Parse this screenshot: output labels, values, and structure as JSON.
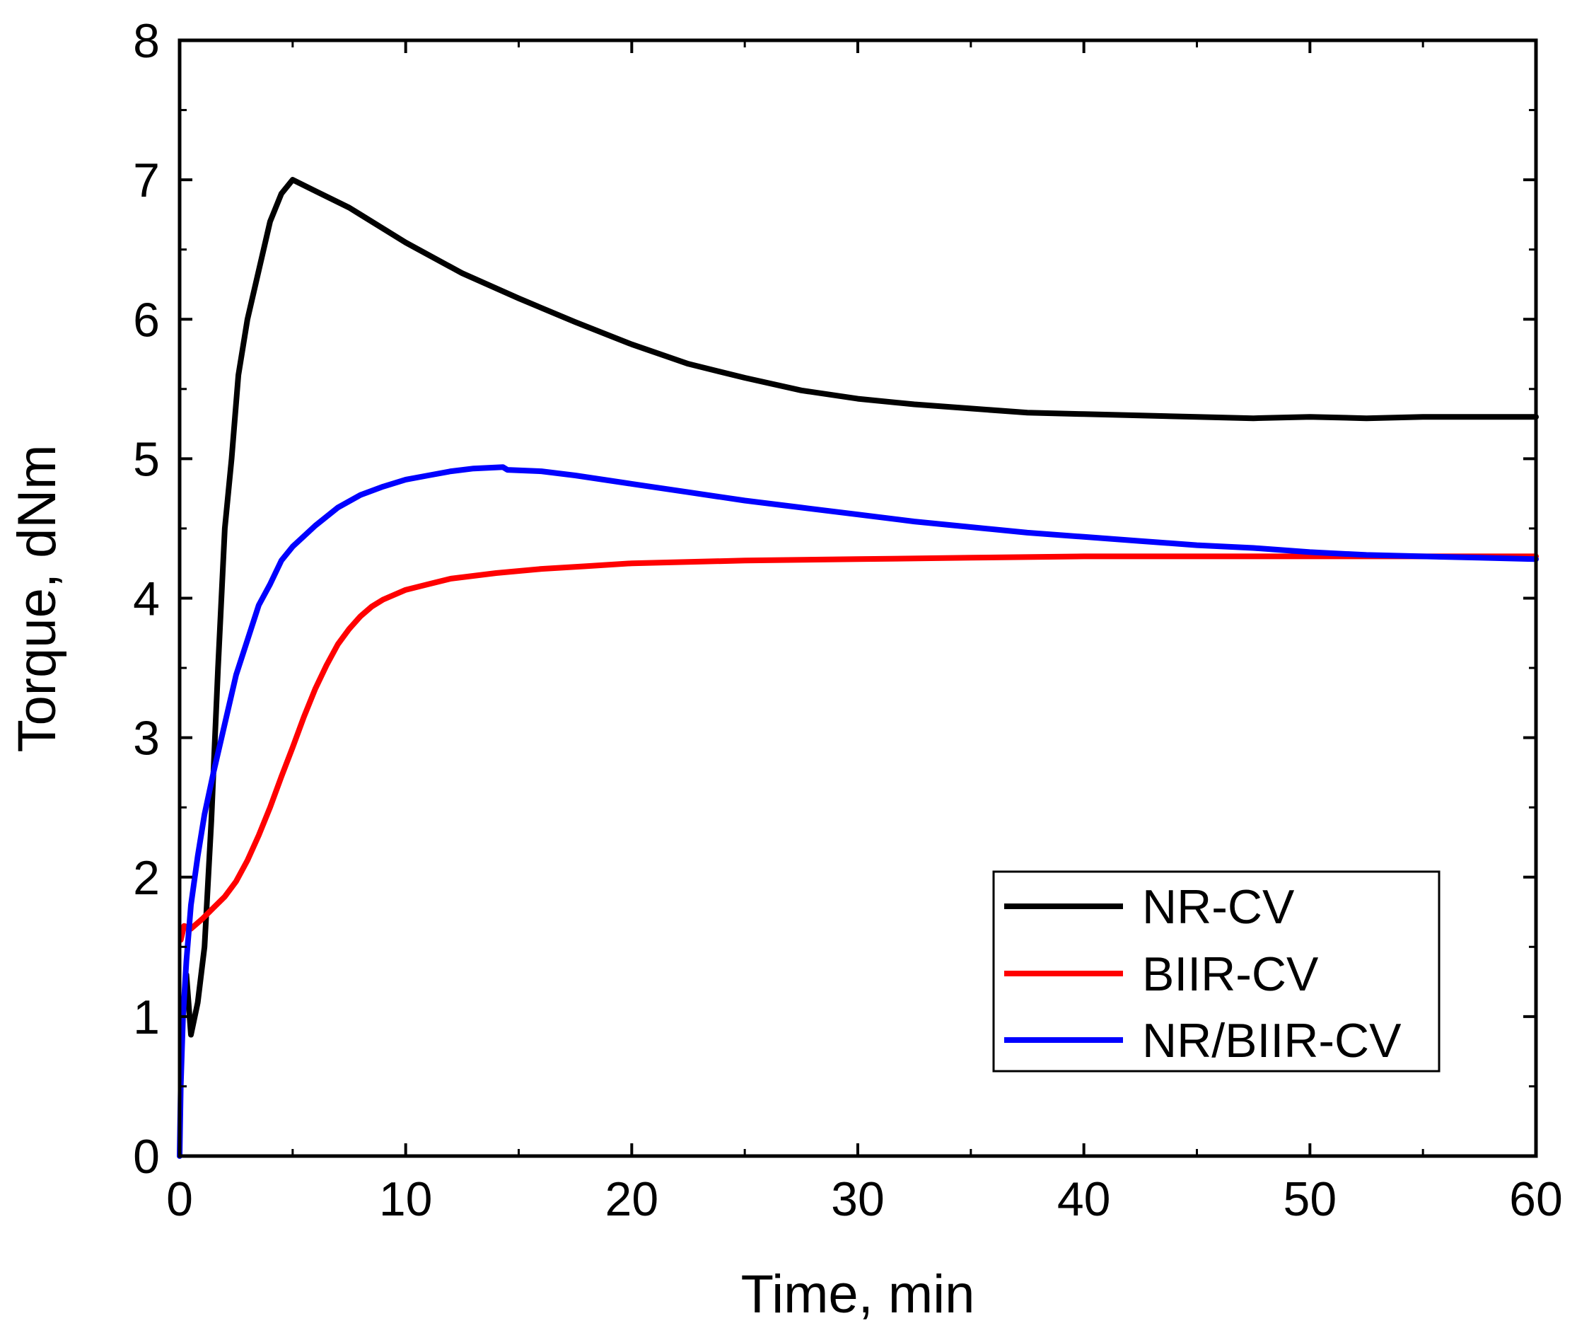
{
  "chart_data": {
    "type": "line",
    "title": "",
    "xlabel": "Time, min",
    "ylabel": "Torque, dNm",
    "xlim": [
      0,
      60
    ],
    "ylim": [
      0,
      8
    ],
    "xticks": [
      0,
      10,
      20,
      30,
      40,
      50,
      60
    ],
    "yticks": [
      0,
      1,
      2,
      3,
      4,
      5,
      6,
      7,
      8
    ],
    "x_minor_step": 5,
    "y_minor_step": 0.5,
    "grid": false,
    "legend_position": "bottom-right",
    "series": [
      {
        "name": "NR-CV",
        "color": "#000000",
        "points": [
          [
            0.3,
            1.3
          ],
          [
            0.5,
            0.87
          ],
          [
            0.8,
            1.1
          ],
          [
            1.1,
            1.5
          ],
          [
            1.4,
            2.4
          ],
          [
            1.7,
            3.5
          ],
          [
            2.0,
            4.5
          ],
          [
            2.3,
            5.0
          ],
          [
            2.6,
            5.6
          ],
          [
            3.0,
            6.0
          ],
          [
            3.5,
            6.35
          ],
          [
            4.0,
            6.7
          ],
          [
            4.5,
            6.9
          ],
          [
            5.0,
            7.0
          ],
          [
            6.0,
            6.92
          ],
          [
            7.5,
            6.8
          ],
          [
            10,
            6.55
          ],
          [
            12.5,
            6.33
          ],
          [
            15,
            6.15
          ],
          [
            17.5,
            5.98
          ],
          [
            20,
            5.82
          ],
          [
            22.5,
            5.68
          ],
          [
            25,
            5.58
          ],
          [
            27.5,
            5.49
          ],
          [
            30,
            5.43
          ],
          [
            32.5,
            5.39
          ],
          [
            35,
            5.36
          ],
          [
            37.5,
            5.33
          ],
          [
            40,
            5.32
          ],
          [
            42.5,
            5.31
          ],
          [
            45,
            5.3
          ],
          [
            47.5,
            5.29
          ],
          [
            50,
            5.3
          ],
          [
            52.5,
            5.29
          ],
          [
            55,
            5.3
          ],
          [
            57.5,
            5.3
          ],
          [
            60,
            5.3
          ]
        ]
      },
      {
        "name": "BIIR-CV",
        "color": "#ff0000",
        "points": [
          [
            0.05,
            1.55
          ],
          [
            0.2,
            1.65
          ],
          [
            0.5,
            1.63
          ],
          [
            1.0,
            1.7
          ],
          [
            1.5,
            1.78
          ],
          [
            2.0,
            1.86
          ],
          [
            2.5,
            1.97
          ],
          [
            3.0,
            2.12
          ],
          [
            3.5,
            2.3
          ],
          [
            4.0,
            2.5
          ],
          [
            4.5,
            2.72
          ],
          [
            5.0,
            2.93
          ],
          [
            5.5,
            3.15
          ],
          [
            6.0,
            3.35
          ],
          [
            6.5,
            3.52
          ],
          [
            7.0,
            3.67
          ],
          [
            7.5,
            3.78
          ],
          [
            8.0,
            3.87
          ],
          [
            8.5,
            3.94
          ],
          [
            9.0,
            3.99
          ],
          [
            10,
            4.06
          ],
          [
            11,
            4.1
          ],
          [
            12,
            4.14
          ],
          [
            14,
            4.18
          ],
          [
            16,
            4.21
          ],
          [
            18,
            4.23
          ],
          [
            20,
            4.25
          ],
          [
            25,
            4.27
          ],
          [
            30,
            4.28
          ],
          [
            35,
            4.29
          ],
          [
            40,
            4.3
          ],
          [
            45,
            4.3
          ],
          [
            50,
            4.3
          ],
          [
            55,
            4.3
          ],
          [
            60,
            4.3
          ]
        ]
      },
      {
        "name": "NR/BIIR-CV",
        "color": "#0000ff",
        "points": [
          [
            0.0,
            0.0
          ],
          [
            0.05,
            0.5
          ],
          [
            0.15,
            1.0
          ],
          [
            0.3,
            1.4
          ],
          [
            0.5,
            1.8
          ],
          [
            0.8,
            2.15
          ],
          [
            1.1,
            2.45
          ],
          [
            1.5,
            2.75
          ],
          [
            2.0,
            3.1
          ],
          [
            2.5,
            3.45
          ],
          [
            3.0,
            3.7
          ],
          [
            3.5,
            3.95
          ],
          [
            4.0,
            4.1
          ],
          [
            4.5,
            4.27
          ],
          [
            5.0,
            4.37
          ],
          [
            6.0,
            4.52
          ],
          [
            7.0,
            4.65
          ],
          [
            8.0,
            4.74
          ],
          [
            9.0,
            4.8
          ],
          [
            10,
            4.85
          ],
          [
            11,
            4.88
          ],
          [
            12,
            4.91
          ],
          [
            13,
            4.93
          ],
          [
            14.3,
            4.94
          ],
          [
            14.5,
            4.92
          ],
          [
            16,
            4.91
          ],
          [
            17.5,
            4.88
          ],
          [
            20,
            4.82
          ],
          [
            22.5,
            4.76
          ],
          [
            25,
            4.7
          ],
          [
            27.5,
            4.65
          ],
          [
            30,
            4.6
          ],
          [
            32.5,
            4.55
          ],
          [
            35,
            4.51
          ],
          [
            37.5,
            4.47
          ],
          [
            40,
            4.44
          ],
          [
            42.5,
            4.41
          ],
          [
            45,
            4.38
          ],
          [
            47.5,
            4.36
          ],
          [
            50,
            4.33
          ],
          [
            52.5,
            4.31
          ],
          [
            55,
            4.3
          ],
          [
            57.5,
            4.29
          ],
          [
            60,
            4.28
          ]
        ]
      }
    ]
  }
}
